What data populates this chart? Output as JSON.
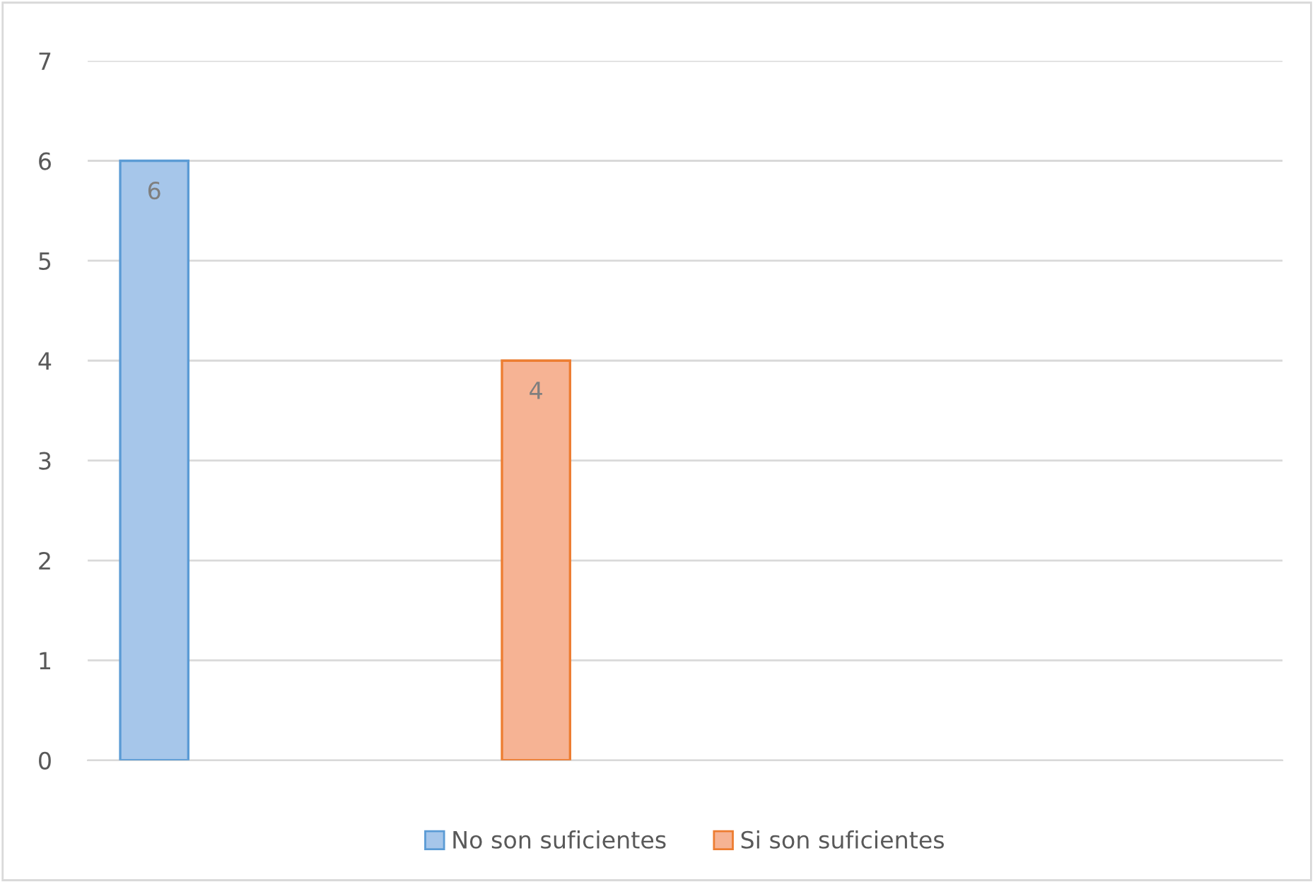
{
  "chart_data": {
    "type": "bar",
    "categories": [
      null
    ],
    "series": [
      {
        "name": "No son suficientes",
        "color": "#a6c6ea",
        "values": [
          6
        ]
      },
      {
        "name": "Si son suficientes",
        "color": "#f6b394",
        "values": [
          4
        ]
      }
    ],
    "ylim": [
      0,
      7
    ],
    "yticks": [
      0,
      1,
      2,
      3,
      4,
      5,
      6,
      7
    ],
    "grid": "y",
    "legend": "bottom",
    "data_labels": true,
    "tick_labels": "y"
  }
}
